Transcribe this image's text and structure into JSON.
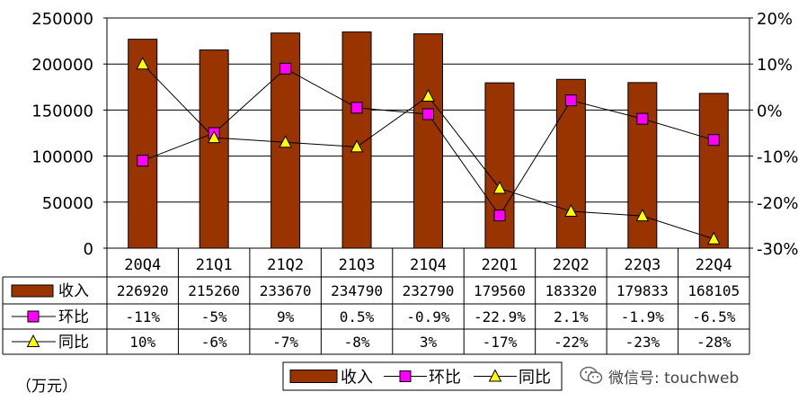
{
  "chart_data": {
    "type": "bar",
    "categories": [
      "20Q4",
      "21Q1",
      "21Q2",
      "21Q3",
      "21Q4",
      "22Q1",
      "22Q2",
      "22Q3",
      "22Q4"
    ],
    "left_axis": {
      "ylim": [
        0,
        250000
      ],
      "ticks": [
        "0",
        "50000",
        "100000",
        "150000",
        "200000",
        "250000"
      ]
    },
    "right_axis": {
      "ylim": [
        -30,
        20
      ],
      "ticks": [
        "-30%",
        "-20%",
        "-10%",
        "0%",
        "10%",
        "20%"
      ]
    },
    "unit_label": "（万元）",
    "series": [
      {
        "name": "收入",
        "kind": "bar",
        "axis": "left",
        "color": "#993300",
        "values": [
          226920,
          215260,
          233670,
          234790,
          232790,
          179560,
          183320,
          179833,
          168105
        ],
        "labels": [
          "226920",
          "215260",
          "233670",
          "234790",
          "232790",
          "179560",
          "183320",
          "179833",
          "168105"
        ]
      },
      {
        "name": "环比",
        "kind": "line",
        "axis": "right",
        "marker": "square",
        "color": "#ff00ff",
        "values": [
          -11,
          -5,
          9,
          0.5,
          -0.9,
          -22.9,
          2.1,
          -1.9,
          -6.5
        ],
        "labels": [
          "-11%",
          "-5%",
          "9%",
          "0.5%",
          "-0.9%",
          "-22.9%",
          "2.1%",
          "-1.9%",
          "-6.5%"
        ]
      },
      {
        "name": "同比",
        "kind": "line",
        "axis": "right",
        "marker": "triangle",
        "color": "#ffff00",
        "values": [
          10,
          -6,
          -7,
          -8,
          3,
          -17,
          -22,
          -23,
          -28
        ],
        "labels": [
          "10%",
          "-6%",
          "-7%",
          "-8%",
          "3%",
          "-17%",
          "-22%",
          "-23%",
          "-28%"
        ]
      }
    ],
    "grid": true,
    "legend_position": "bottom"
  },
  "watermark": {
    "text": "微信号: touchweb",
    "icon": "wechat-icon"
  }
}
